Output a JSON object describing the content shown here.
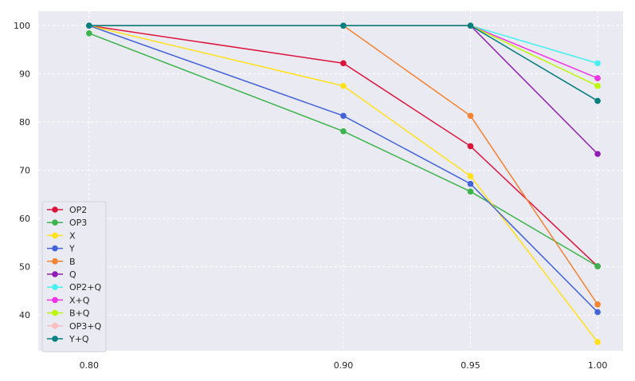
{
  "chart_data": {
    "type": "line",
    "title": "",
    "xlabel": "",
    "ylabel": "",
    "x": [
      0.8,
      0.9,
      0.95,
      1.0
    ],
    "x_tick_labels": [
      "0.80",
      "0.90",
      "0.95",
      "1.00"
    ],
    "y_ticks": [
      40,
      50,
      60,
      70,
      80,
      90,
      100
    ],
    "y_tick_labels": [
      "40",
      "50",
      "60",
      "70",
      "80",
      "90",
      "100"
    ],
    "ylim": [
      32.6,
      103
    ],
    "xlim": [
      0.78,
      1.01
    ],
    "grid": true,
    "legend_position": "lower-left",
    "background": "#eaeaf2",
    "series": [
      {
        "name": "OP2",
        "color": "#dc143c",
        "values": [
          100,
          92.2,
          75.0,
          50.1
        ]
      },
      {
        "name": "OP3",
        "color": "#3cb44b",
        "values": [
          98.4,
          78.1,
          65.6,
          50.1
        ]
      },
      {
        "name": "X",
        "color": "#ffe119",
        "values": [
          100,
          87.5,
          68.8,
          34.4
        ]
      },
      {
        "name": "Y",
        "color": "#4363d8",
        "values": [
          100,
          81.3,
          67.2,
          40.6
        ]
      },
      {
        "name": "B",
        "color": "#f58231",
        "values": [
          100,
          100,
          81.3,
          42.2
        ]
      },
      {
        "name": "Q",
        "color": "#911eb4",
        "values": [
          100,
          100,
          100,
          73.4
        ]
      },
      {
        "name": "OP2+Q",
        "color": "#46f0f0",
        "values": [
          100,
          100,
          100,
          92.2
        ]
      },
      {
        "name": "X+Q",
        "color": "#f032e6",
        "values": [
          100,
          100,
          100,
          89.1
        ]
      },
      {
        "name": "B+Q",
        "color": "#bcf60c",
        "values": [
          100,
          100,
          100,
          87.5
        ]
      },
      {
        "name": "OP3+Q",
        "color": "#fabebe",
        "values": [
          100,
          100,
          100,
          84.4
        ]
      },
      {
        "name": "Y+Q",
        "color": "#008080",
        "values": [
          100,
          100,
          100,
          84.4
        ]
      }
    ]
  }
}
